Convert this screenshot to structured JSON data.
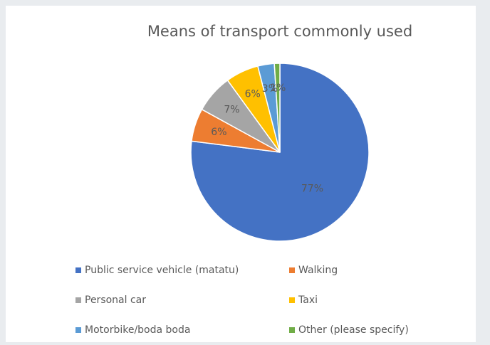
{
  "chart_data": {
    "type": "pie",
    "title": "Means of transport commonly used",
    "categories": [
      "Public service vehicle (matatu)",
      "Walking",
      "Personal car",
      "Taxi",
      "Motorbike/boda boda",
      "Other (please specify)"
    ],
    "values": [
      77,
      6,
      7,
      6,
      3,
      1
    ],
    "value_labels": [
      "77%",
      "6%",
      "7%",
      "6%",
      "3%",
      "1%"
    ],
    "colors": [
      "#4472c4",
      "#ed7d31",
      "#a5a5a5",
      "#ffc000",
      "#5b9bd5",
      "#70ad47"
    ]
  }
}
